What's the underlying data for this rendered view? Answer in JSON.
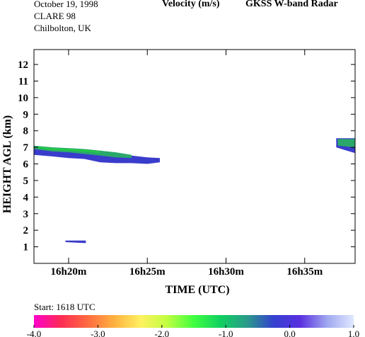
{
  "header": {
    "date": "October  19, 1998",
    "campaign": "CLARE 98",
    "location": "Chilbolton, UK",
    "quantity": "Velocity (m/s)",
    "instrument": "GKSS  W-band Radar"
  },
  "start_label": "Start: 1618 UTC",
  "colorbar": {
    "ticks": [
      "-4.0",
      "-3.0",
      "-2.0",
      "-1.0",
      "0.0",
      "1.0"
    ],
    "colors": [
      "#ff00cc",
      "#ff2a55",
      "#ff6a40",
      "#ffb040",
      "#fff060",
      "#c0ff40",
      "#40ff40",
      "#10d060",
      "#2a9a8a",
      "#3540d0",
      "#5a30e0",
      "#a0a8f0",
      "#e0e8ff"
    ]
  },
  "chart_data": {
    "type": "heatmap",
    "title": "Velocity (m/s)",
    "xlabel": "TIME (UTC)",
    "ylabel": "HEIGHT AGL (km)",
    "xlim": [
      17.8,
      38.2
    ],
    "ylim": [
      0,
      12.9
    ],
    "x_ticks": [
      {
        "value": 20,
        "label": "16h20m"
      },
      {
        "value": 25,
        "label": "16h25m"
      },
      {
        "value": 30,
        "label": "16h30m"
      },
      {
        "value": 35,
        "label": "16h35m"
      }
    ],
    "y_ticks": [
      1,
      2,
      3,
      4,
      5,
      6,
      7,
      8,
      9,
      10,
      11,
      12
    ],
    "x_units": "minutes after 16h00m UTC",
    "y_units": "km",
    "layers": [
      {
        "velocity": 0.0,
        "color": "#3a3ccc",
        "top": [
          [
            17.8,
            7.0
          ],
          [
            19,
            6.9
          ],
          [
            20,
            6.85
          ],
          [
            21,
            6.8
          ],
          [
            22,
            6.7
          ],
          [
            23,
            6.6
          ],
          [
            24,
            6.5
          ],
          [
            25,
            6.4
          ],
          [
            25.8,
            6.35
          ]
        ],
        "base": [
          [
            17.8,
            6.55
          ],
          [
            19,
            6.45
          ],
          [
            20,
            6.35
          ],
          [
            21,
            6.3
          ],
          [
            22,
            6.1
          ],
          [
            23,
            6.05
          ],
          [
            24,
            6.05
          ],
          [
            25,
            6.0
          ],
          [
            25.8,
            6.1
          ]
        ]
      },
      {
        "velocity": -0.6,
        "color": "#2aa86a",
        "top": [
          [
            17.8,
            7.1
          ],
          [
            19,
            7.0
          ],
          [
            20,
            6.95
          ],
          [
            21,
            6.9
          ],
          [
            22,
            6.8
          ],
          [
            23,
            6.7
          ],
          [
            24,
            6.55
          ]
        ],
        "base": [
          [
            17.8,
            6.9
          ],
          [
            19,
            6.75
          ],
          [
            20,
            6.7
          ],
          [
            21,
            6.6
          ],
          [
            22,
            6.5
          ],
          [
            23,
            6.4
          ],
          [
            24,
            6.35
          ]
        ]
      },
      {
        "velocity": -1.0,
        "color": "#22cc44",
        "top": [
          [
            18,
            7.05
          ],
          [
            19,
            6.95
          ],
          [
            21,
            6.85
          ],
          [
            22,
            6.75
          ]
        ],
        "base": [
          [
            18,
            6.95
          ],
          [
            19,
            6.85
          ],
          [
            21,
            6.75
          ],
          [
            22,
            6.65
          ]
        ]
      },
      {
        "velocity": 0.0,
        "color": "#3a3ccc",
        "top": [
          [
            37.0,
            7.55
          ],
          [
            38.2,
            7.55
          ]
        ],
        "base": [
          [
            37.0,
            7.0
          ],
          [
            37.5,
            6.85
          ],
          [
            38.2,
            6.65
          ]
        ]
      },
      {
        "velocity": -0.6,
        "color": "#2aa86a",
        "top": [
          [
            37.1,
            7.5
          ],
          [
            38.2,
            7.5
          ]
        ],
        "base": [
          [
            37.1,
            7.1
          ],
          [
            38.2,
            7.0
          ]
        ]
      },
      {
        "velocity": 0.0,
        "color": "#3a3ccc",
        "top": [
          [
            19.8,
            1.38
          ],
          [
            21.1,
            1.38
          ]
        ],
        "base": [
          [
            19.8,
            1.28
          ],
          [
            21.1,
            1.22
          ]
        ]
      }
    ]
  }
}
